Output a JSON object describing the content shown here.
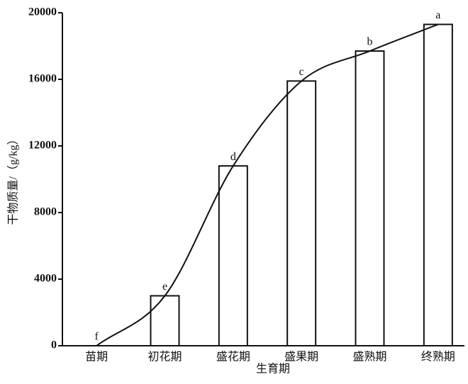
{
  "chart_data": {
    "type": "bar",
    "x_label": "生育期",
    "y_label": "干物质量/（g/kg）",
    "categories": [
      "苗期",
      "初花期",
      "盛花期",
      "盛果期",
      "盛熟期",
      "终熟期"
    ],
    "values": [
      0,
      3000,
      10800,
      15900,
      17700,
      19300
    ],
    "letters": [
      "f",
      "e",
      "d",
      "c",
      "b",
      "a"
    ],
    "ylim": [
      0,
      20000
    ],
    "yticks": [
      0,
      4000,
      8000,
      12000,
      16000,
      20000
    ],
    "color": "#ffffff",
    "line_color": "#111111",
    "smooth_line": true
  }
}
